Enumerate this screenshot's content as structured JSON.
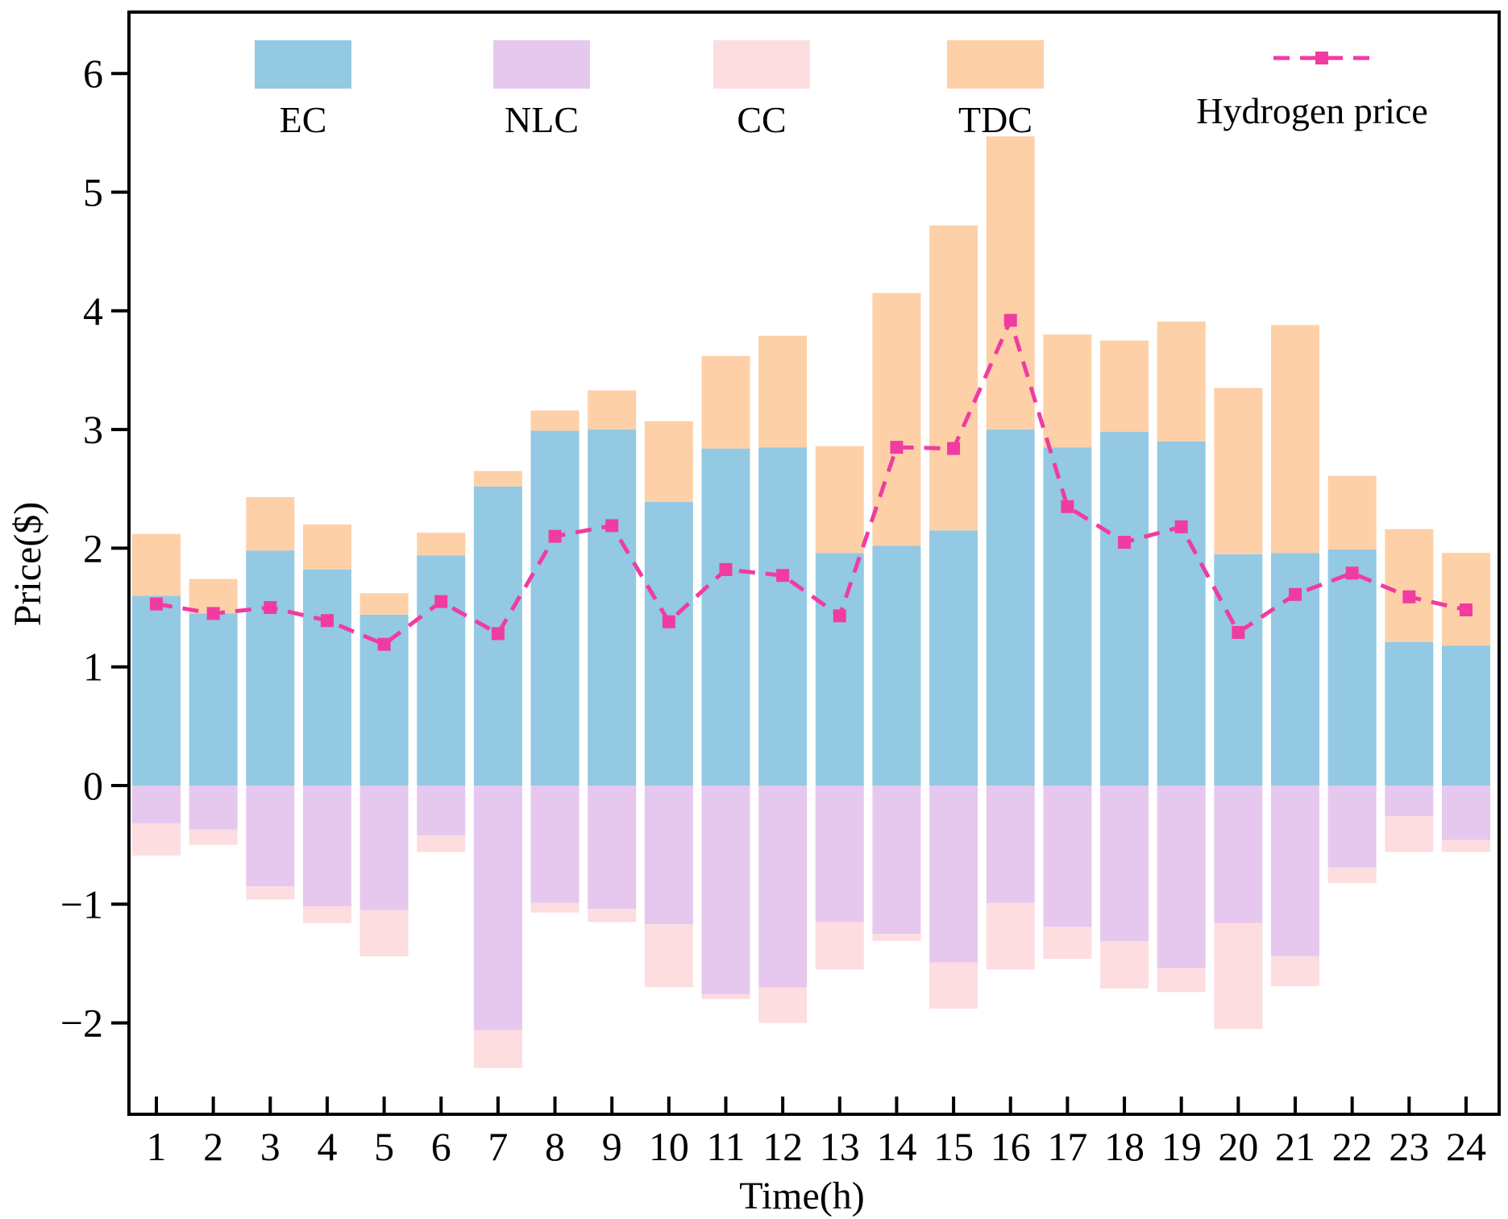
{
  "chart_data": {
    "type": "bar",
    "title": "",
    "xlabel": "Time(h)",
    "ylabel": "Price($)",
    "ylim": [
      -2.75,
      6.5
    ],
    "yticks": [
      -2,
      -1,
      0,
      1,
      2,
      3,
      4,
      5,
      6
    ],
    "ytick_labels": [
      "−2",
      "−1",
      "0",
      "1",
      "2",
      "3",
      "4",
      "5",
      "6"
    ],
    "categories": [
      "1",
      "2",
      "3",
      "4",
      "5",
      "6",
      "7",
      "8",
      "9",
      "10",
      "11",
      "12",
      "13",
      "14",
      "15",
      "16",
      "17",
      "18",
      "19",
      "20",
      "21",
      "22",
      "23",
      "24"
    ],
    "stacked": true,
    "legend_position": "top",
    "series": [
      {
        "name": "EC",
        "color": "#93C9E3",
        "values": [
          1.6,
          1.45,
          1.98,
          1.82,
          1.44,
          1.94,
          2.52,
          2.99,
          3.0,
          2.39,
          2.84,
          2.85,
          1.96,
          2.02,
          2.15,
          3.0,
          2.85,
          2.98,
          2.9,
          1.95,
          1.96,
          1.99,
          1.21,
          1.18
        ]
      },
      {
        "name": "NLC",
        "color": "#E6C8EE",
        "values": [
          -0.32,
          -0.37,
          -0.85,
          -1.02,
          -1.05,
          -0.42,
          -2.06,
          -0.99,
          -1.04,
          -1.17,
          -1.76,
          -1.7,
          -1.15,
          -1.25,
          -1.49,
          -0.99,
          -1.19,
          -1.31,
          -1.54,
          -1.16,
          -1.44,
          -0.69,
          -0.26,
          -0.46
        ]
      },
      {
        "name": "CC",
        "color": "#FDDDE0",
        "values": [
          -0.27,
          -0.13,
          -0.11,
          -0.14,
          -0.39,
          -0.14,
          -0.32,
          -0.08,
          -0.11,
          -0.53,
          -0.04,
          -0.3,
          -0.4,
          -0.06,
          -0.39,
          -0.56,
          -0.27,
          -0.4,
          -0.2,
          -0.89,
          -0.25,
          -0.13,
          -0.3,
          -0.1
        ]
      },
      {
        "name": "TDC",
        "color": "#FDD0A8",
        "values": [
          0.52,
          0.29,
          0.45,
          0.38,
          0.18,
          0.19,
          0.13,
          0.17,
          0.33,
          0.68,
          0.78,
          0.94,
          0.9,
          2.13,
          2.57,
          2.47,
          0.95,
          0.77,
          1.01,
          1.4,
          1.92,
          0.62,
          0.95,
          0.78
        ]
      }
    ],
    "line_series": {
      "name": "Hydrogen price",
      "color": "#F03CA0",
      "style": "dashed",
      "marker": "square",
      "values": [
        1.53,
        1.45,
        1.5,
        1.39,
        1.19,
        1.55,
        1.28,
        2.1,
        2.19,
        1.38,
        1.82,
        1.77,
        1.43,
        2.85,
        2.84,
        3.92,
        2.35,
        2.05,
        2.18,
        1.29,
        1.61,
        1.79,
        1.59,
        1.48
      ]
    }
  }
}
